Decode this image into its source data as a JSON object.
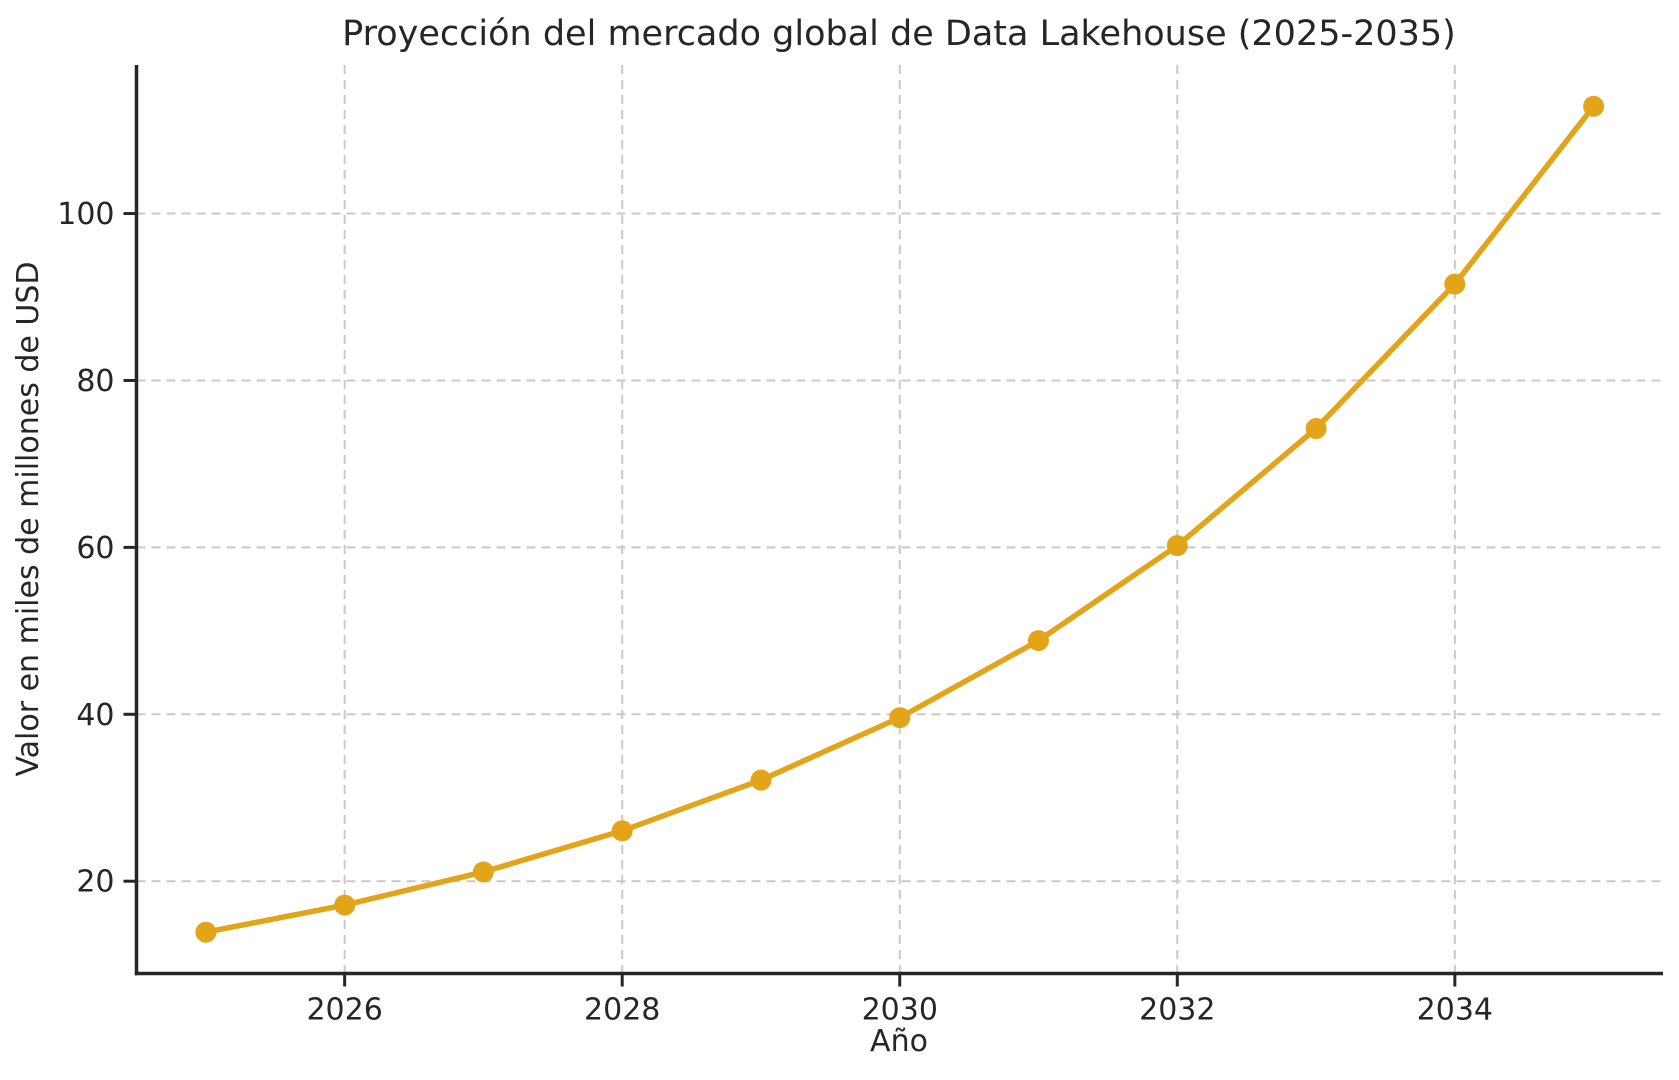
{
  "chart_data": {
    "type": "line",
    "title": "Proyección del mercado global de Data Lakehouse (2025-2035)",
    "xlabel": "Año",
    "ylabel": "Valor en miles de millones de USD",
    "x": [
      2025,
      2026,
      2027,
      2028,
      2029,
      2030,
      2031,
      2032,
      2033,
      2034,
      2035
    ],
    "values": [
      13.89,
      17.13,
      21.12,
      26.04,
      32.11,
      39.6,
      48.83,
      60.21,
      74.25,
      91.55,
      112.85
    ],
    "xticks": [
      2026,
      2028,
      2030,
      2032,
      2034
    ],
    "yticks": [
      20,
      40,
      60,
      80,
      100
    ],
    "xlim": [
      2024.5,
      2035.5
    ],
    "ylim": [
      8.94,
      117.8
    ],
    "grid": true,
    "legend": false,
    "colors": {
      "line": "#e4a41a",
      "marker": "#e4a41a",
      "grid": "#c9c9c9",
      "spine": "#262626",
      "text": "#262626",
      "background": "#ffffff"
    }
  }
}
